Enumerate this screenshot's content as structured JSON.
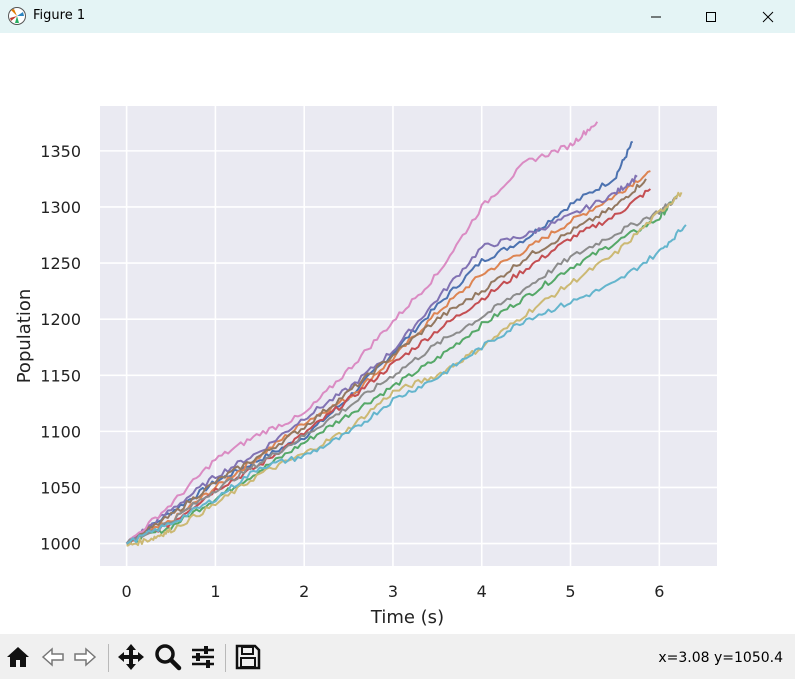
{
  "window": {
    "title": "Figure 1"
  },
  "toolbar": {
    "coords": "x=3.08 y=1050.4",
    "buttons": [
      "home-icon",
      "back-icon",
      "forward-icon",
      "pan-icon",
      "zoom-icon",
      "configure-subplots-icon",
      "save-icon"
    ]
  },
  "chart_data": {
    "type": "line",
    "title": "",
    "xlabel": "Time (s)",
    "ylabel": "Population",
    "xlim": [
      -0.3,
      6.65
    ],
    "ylim": [
      980,
      1390
    ],
    "xticks": [
      0,
      1,
      2,
      3,
      4,
      5,
      6
    ],
    "yticks": [
      1000,
      1050,
      1100,
      1150,
      1200,
      1250,
      1300,
      1350
    ],
    "grid": true,
    "legend": "none",
    "background": "#eaeaf2",
    "series": [
      {
        "color": "#4c72b0",
        "x": [
          0,
          0.5,
          1,
          1.5,
          2,
          2.5,
          3,
          3.5,
          4,
          4.5,
          5,
          5.5,
          5.7
        ],
        "y": [
          1000,
          1028,
          1055,
          1075,
          1095,
          1130,
          1170,
          1212,
          1252,
          1272,
          1302,
          1326,
          1358
        ]
      },
      {
        "color": "#dd8452",
        "x": [
          0,
          0.5,
          1,
          1.5,
          2,
          2.5,
          3,
          3.5,
          4,
          4.5,
          5,
          5.5,
          5.9
        ],
        "y": [
          1000,
          1020,
          1050,
          1078,
          1108,
          1130,
          1165,
          1206,
          1240,
          1262,
          1287,
          1310,
          1332
        ]
      },
      {
        "color": "#55a868",
        "x": [
          0,
          0.5,
          1,
          1.5,
          2,
          2.5,
          3,
          3.5,
          4,
          4.5,
          5,
          5.5,
          6,
          6.2
        ],
        "y": [
          1000,
          1015,
          1040,
          1065,
          1090,
          1115,
          1140,
          1165,
          1195,
          1220,
          1246,
          1268,
          1290,
          1310
        ]
      },
      {
        "color": "#c44e52",
        "x": [
          0,
          0.5,
          1,
          1.5,
          2,
          2.5,
          3,
          3.5,
          4,
          4.5,
          5,
          5.5,
          5.9
        ],
        "y": [
          1000,
          1018,
          1048,
          1070,
          1098,
          1128,
          1160,
          1190,
          1218,
          1245,
          1272,
          1292,
          1316
        ]
      },
      {
        "color": "#8172b3",
        "x": [
          0,
          0.5,
          1,
          1.5,
          2,
          2.5,
          3,
          3.5,
          4,
          4.5,
          5,
          5.5,
          5.75
        ],
        "y": [
          1000,
          1030,
          1060,
          1082,
          1112,
          1138,
          1172,
          1218,
          1264,
          1275,
          1292,
          1312,
          1327
        ]
      },
      {
        "color": "#937860",
        "x": [
          0,
          0.5,
          1,
          1.5,
          2,
          2.5,
          3,
          3.5,
          4,
          4.5,
          5,
          5.5,
          5.85
        ],
        "y": [
          1000,
          1025,
          1055,
          1078,
          1104,
          1135,
          1168,
          1200,
          1225,
          1255,
          1278,
          1300,
          1325
        ]
      },
      {
        "color": "#da8bc3",
        "x": [
          0,
          0.5,
          1,
          1.5,
          2,
          2.5,
          3,
          3.5,
          4,
          4.5,
          5,
          5.3
        ],
        "y": [
          1000,
          1035,
          1075,
          1098,
          1115,
          1155,
          1198,
          1240,
          1300,
          1340,
          1355,
          1376
        ]
      },
      {
        "color": "#8c8c8c",
        "x": [
          0,
          0.5,
          1,
          1.5,
          2,
          2.5,
          3,
          3.5,
          4,
          4.5,
          5,
          5.5,
          6,
          6.2
        ],
        "y": [
          1000,
          1020,
          1048,
          1072,
          1096,
          1122,
          1150,
          1178,
          1202,
          1228,
          1255,
          1276,
          1296,
          1308
        ]
      },
      {
        "color": "#ccb974",
        "x": [
          0,
          0.3,
          0.5,
          1,
          1.5,
          2,
          2.5,
          3,
          3.5,
          4,
          4.5,
          5,
          5.5,
          6,
          6.25
        ],
        "y": [
          998,
          1005,
          1012,
          1035,
          1062,
          1080,
          1102,
          1135,
          1150,
          1175,
          1205,
          1232,
          1258,
          1295,
          1313
        ]
      },
      {
        "color": "#64b5cd",
        "x": [
          0,
          0.5,
          1,
          1.5,
          2,
          2.5,
          3,
          3.5,
          4,
          4.5,
          5,
          5.5,
          6,
          6.3
        ],
        "y": [
          1000,
          1018,
          1040,
          1068,
          1078,
          1098,
          1128,
          1148,
          1175,
          1200,
          1215,
          1232,
          1260,
          1284
        ]
      }
    ]
  }
}
